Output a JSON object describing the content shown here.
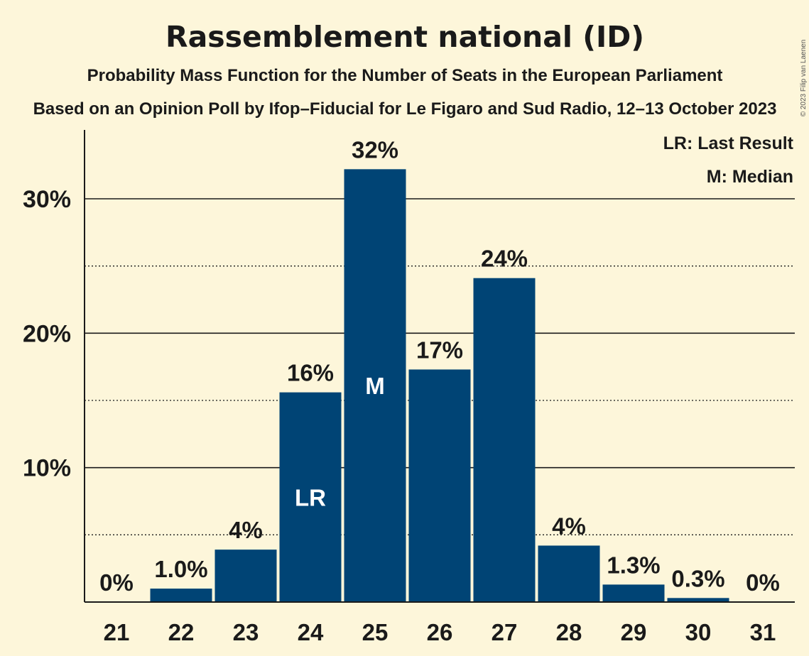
{
  "chart_data": {
    "type": "bar",
    "title": "Rassemblement national (ID)",
    "subtitle": "Probability Mass Function for the Number of Seats in the European Parliament",
    "subtitle2": "Based on an Opinion Poll by Ifop–Fiducial for Le Figaro and Sud Radio, 12–13 October 2023",
    "copyright": "© 2023 Filip van Laenen",
    "categories": [
      "21",
      "22",
      "23",
      "24",
      "25",
      "26",
      "27",
      "28",
      "29",
      "30",
      "31"
    ],
    "values": [
      0,
      1.0,
      3.9,
      15.6,
      32.2,
      17.3,
      24.1,
      4.2,
      1.3,
      0.3,
      0
    ],
    "value_labels": [
      "0%",
      "1.0%",
      "4%",
      "16%",
      "32%",
      "17%",
      "24%",
      "4%",
      "1.3%",
      "0.3%",
      "0%"
    ],
    "y_ticks": [
      10,
      20,
      30
    ],
    "y_tick_labels": [
      "10%",
      "20%",
      "30%"
    ],
    "y_minor_ticks": [
      5,
      15,
      25
    ],
    "ylim": [
      0,
      35
    ],
    "bar_color": "#004475",
    "background_color": "#fdf6da",
    "last_result_category": "24",
    "last_result_marker": "LR",
    "median_category": "25",
    "median_marker": "M",
    "legend": {
      "placement": "top-right",
      "items": [
        "LR: Last Result",
        "M: Median"
      ]
    }
  }
}
